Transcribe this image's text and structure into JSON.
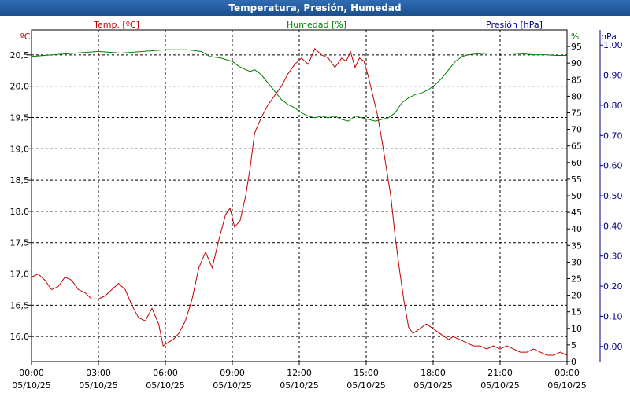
{
  "window": {
    "title": "Temperatura, Presión, Humedad"
  },
  "chart_data": {
    "type": "line",
    "title": "Temperatura, Presión, Humedad",
    "grid": true,
    "x": {
      "range_hours": [
        0,
        24
      ],
      "ticks": [
        {
          "time": "00:00",
          "date": "05/10/25"
        },
        {
          "time": "03:00",
          "date": "05/10/25"
        },
        {
          "time": "06:00",
          "date": "05/10/25"
        },
        {
          "time": "09:00",
          "date": "05/10/25"
        },
        {
          "time": "12:00",
          "date": "05/10/25"
        },
        {
          "time": "15:00",
          "date": "05/10/25"
        },
        {
          "time": "18:00",
          "date": "05/10/25"
        },
        {
          "time": "21:00",
          "date": "05/10/25"
        },
        {
          "time": "00:00",
          "date": "06/10/25"
        }
      ]
    },
    "axes": {
      "temperature": {
        "label": "Temp. [ºC]",
        "unit": "ºC",
        "color": "#c00000",
        "side": "left",
        "range": [
          15.6,
          20.9
        ],
        "ticks": [
          "16,0",
          "16,5",
          "17,0",
          "17,5",
          "18,0",
          "18,5",
          "19,0",
          "19,5",
          "20,0",
          "20,5"
        ],
        "tick_values": [
          16.0,
          16.5,
          17.0,
          17.5,
          18.0,
          18.5,
          19.0,
          19.5,
          20.0,
          20.5
        ]
      },
      "humidity": {
        "label": "Humedad [%]",
        "unit": "%",
        "color": "#008000",
        "side": "right",
        "range": [
          0,
          100
        ],
        "ticks": [
          "0",
          "5",
          "10",
          "15",
          "20",
          "25",
          "30",
          "35",
          "40",
          "45",
          "50",
          "55",
          "60",
          "65",
          "70",
          "75",
          "80",
          "85",
          "90",
          "95"
        ],
        "tick_values": [
          0,
          5,
          10,
          15,
          20,
          25,
          30,
          35,
          40,
          45,
          50,
          55,
          60,
          65,
          70,
          75,
          80,
          85,
          90,
          95
        ]
      },
      "pressure": {
        "label": "Presión [hPa]",
        "unit": "hPa",
        "color": "#000080",
        "side": "right",
        "range": [
          -0.05,
          1.05
        ],
        "ticks": [
          "0,00",
          "0,10",
          "0,20",
          "0,30",
          "0,40",
          "0,50",
          "0,60",
          "0,70",
          "0,80",
          "0,90",
          "1,00"
        ],
        "tick_values": [
          0.0,
          0.1,
          0.2,
          0.3,
          0.4,
          0.5,
          0.6,
          0.7,
          0.8,
          0.9,
          1.0
        ]
      }
    },
    "series": [
      {
        "name": "Temp. [ºC]",
        "axis": "temperature",
        "color": "#c00000",
        "x": [
          0,
          0.3,
          0.6,
          0.9,
          1.2,
          1.5,
          1.8,
          2.1,
          2.4,
          2.7,
          3.0,
          3.3,
          3.6,
          3.9,
          4.2,
          4.5,
          4.8,
          5.1,
          5.4,
          5.7,
          5.9,
          6.1,
          6.35,
          6.6,
          6.9,
          7.2,
          7.5,
          7.8,
          8.1,
          8.4,
          8.7,
          8.9,
          9.1,
          9.35,
          9.6,
          9.8,
          10.0,
          10.3,
          10.6,
          10.9,
          11.2,
          11.5,
          11.8,
          12.1,
          12.4,
          12.7,
          13.0,
          13.3,
          13.6,
          13.9,
          14.1,
          14.3,
          14.5,
          14.7,
          14.9,
          15.1,
          15.3,
          15.5,
          15.7,
          15.9,
          16.1,
          16.3,
          16.5,
          16.7,
          16.9,
          17.1,
          17.3,
          17.5,
          17.7,
          17.9,
          18.1,
          18.3,
          18.5,
          18.7,
          18.9,
          19.2,
          19.5,
          19.8,
          20.1,
          20.4,
          20.7,
          21.0,
          21.3,
          21.6,
          21.9,
          22.2,
          22.5,
          22.8,
          23.1,
          23.4,
          23.7,
          24.0
        ],
        "values": [
          16.95,
          17.0,
          16.9,
          16.75,
          16.8,
          16.95,
          16.9,
          16.75,
          16.7,
          16.6,
          16.6,
          16.65,
          16.75,
          16.85,
          16.75,
          16.5,
          16.3,
          16.25,
          16.45,
          16.2,
          15.85,
          15.9,
          15.95,
          16.05,
          16.25,
          16.6,
          17.1,
          17.35,
          17.1,
          17.55,
          17.95,
          18.05,
          17.75,
          17.85,
          18.25,
          18.7,
          19.25,
          19.5,
          19.7,
          19.85,
          20.0,
          20.2,
          20.35,
          20.45,
          20.35,
          20.6,
          20.5,
          20.45,
          20.3,
          20.45,
          20.4,
          20.55,
          20.3,
          20.45,
          20.4,
          20.15,
          19.85,
          19.55,
          19.15,
          18.7,
          18.25,
          17.6,
          17.05,
          16.55,
          16.15,
          16.05,
          16.1,
          16.15,
          16.2,
          16.15,
          16.1,
          16.05,
          16.0,
          15.95,
          16.0,
          15.95,
          15.9,
          15.85,
          15.85,
          15.8,
          15.85,
          15.8,
          15.85,
          15.8,
          15.75,
          15.75,
          15.8,
          15.75,
          15.7,
          15.7,
          15.75,
          15.7
        ]
      },
      {
        "name": "Humedad [%]",
        "axis": "humidity",
        "color": "#008000",
        "x": [
          0,
          1.0,
          2.0,
          3.0,
          4.0,
          5.0,
          6.0,
          7.0,
          7.6,
          8.0,
          8.5,
          9.0,
          9.3,
          9.6,
          9.8,
          10.0,
          10.3,
          10.6,
          10.9,
          11.2,
          11.5,
          11.8,
          12.1,
          12.4,
          12.7,
          13.0,
          13.3,
          13.6,
          13.9,
          14.2,
          14.5,
          14.8,
          15.1,
          15.4,
          15.7,
          16.0,
          16.3,
          16.6,
          16.9,
          17.2,
          17.5,
          17.8,
          18.1,
          18.4,
          18.7,
          19.0,
          19.3,
          19.6,
          20.0,
          20.5,
          21.0,
          21.5,
          22.0,
          22.5,
          23.0,
          23.5,
          24.0
        ],
        "values": [
          92,
          92.5,
          93,
          93.5,
          93,
          93.5,
          94,
          94,
          93.5,
          92,
          91.5,
          90.5,
          89,
          88,
          87.5,
          88,
          86.5,
          84,
          81.5,
          79,
          77.5,
          76.5,
          75,
          74,
          73.5,
          74,
          73.5,
          74,
          73,
          72.5,
          74,
          73.5,
          73,
          72.5,
          73,
          73.5,
          75,
          78,
          79.5,
          80.5,
          81,
          82,
          83.5,
          85.5,
          88,
          90.5,
          92,
          92.5,
          92.8,
          93,
          93,
          93,
          92.8,
          92.5,
          92.5,
          92.3,
          92.3
        ]
      }
    ]
  }
}
